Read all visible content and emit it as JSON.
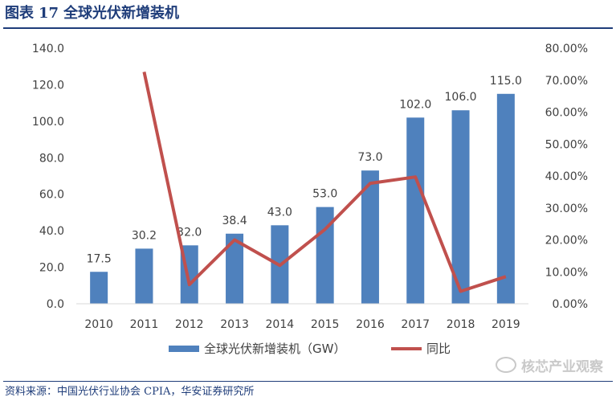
{
  "header": {
    "label": "图表",
    "number": "17",
    "title": "全球光伏新增装机"
  },
  "footer": {
    "source": "资料来源：中国光伏行业协会 CPIA，华安证券研究所"
  },
  "watermark": {
    "text": "核芯产业观察",
    "icon": "wechat-icon"
  },
  "colors": {
    "bar": "#4f81bd",
    "line": "#c0504d",
    "title": "#1f3d7a"
  },
  "chart_data": {
    "type": "bar",
    "categories": [
      "2010",
      "2011",
      "2012",
      "2013",
      "2014",
      "2015",
      "2016",
      "2017",
      "2018",
      "2019"
    ],
    "series": [
      {
        "name": "全球光伏新增装机（GW）",
        "type": "bar",
        "axis": "left",
        "values": [
          17.5,
          30.2,
          32.0,
          38.4,
          43.0,
          53.0,
          73.0,
          102.0,
          106.0,
          115.0
        ],
        "labels": [
          "17.5",
          "30.2",
          "32.0",
          "38.4",
          "43.0",
          "53.0",
          "73.0",
          "102.0",
          "106.0",
          "115.0"
        ]
      },
      {
        "name": "同比",
        "type": "line",
        "axis": "right",
        "values": [
          null,
          72.6,
          6.0,
          20.0,
          12.0,
          23.3,
          37.7,
          39.7,
          3.9,
          8.5
        ]
      }
    ],
    "y_left": {
      "min": 0,
      "max": 140,
      "ticks": [
        "0.0",
        "20.0",
        "40.0",
        "60.0",
        "80.0",
        "100.0",
        "120.0",
        "140.0"
      ]
    },
    "y_right": {
      "min": 0,
      "max": 80,
      "ticks": [
        "0.00%",
        "10.00%",
        "20.00%",
        "30.00%",
        "40.00%",
        "50.00%",
        "60.00%",
        "70.00%",
        "80.00%"
      ]
    },
    "grid": false,
    "legend": "bottom"
  }
}
